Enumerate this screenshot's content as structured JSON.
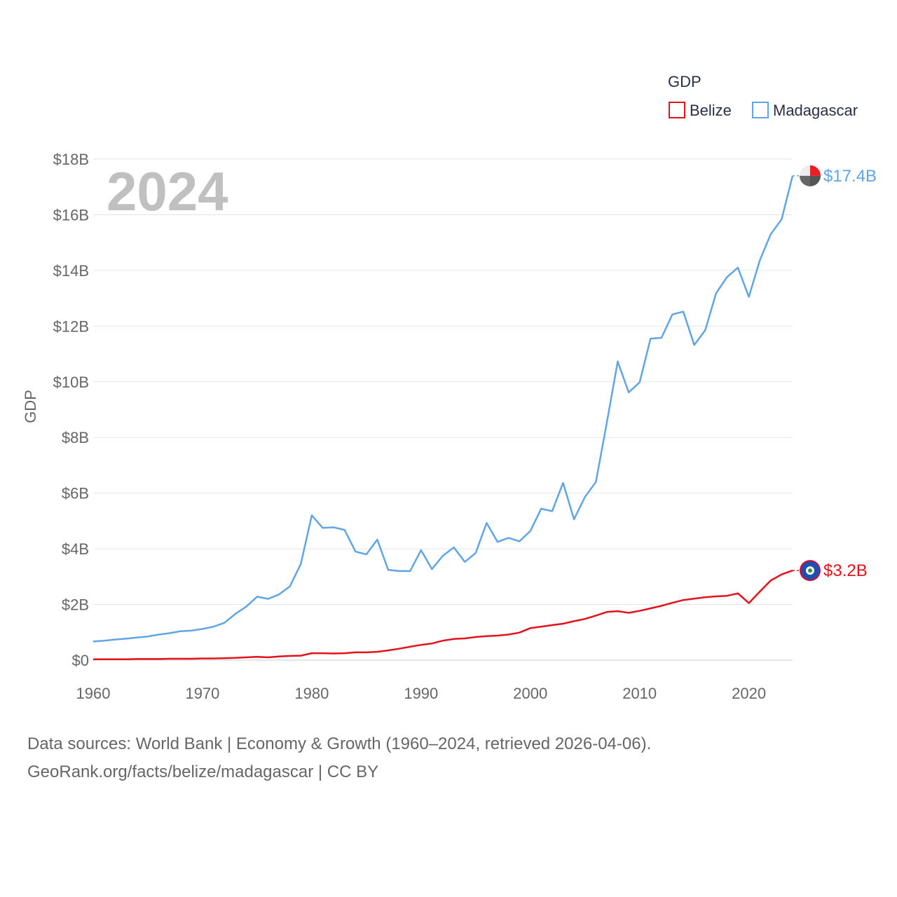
{
  "chart_data": {
    "type": "line",
    "ylabel": "GDP",
    "xlabel": "",
    "x_ticks": [
      "1960",
      "1970",
      "1980",
      "1990",
      "2000",
      "2010",
      "2020"
    ],
    "y_ticks": [
      "$0",
      "$2B",
      "$4B",
      "$6B",
      "$8B",
      "$10B",
      "$12B",
      "$14B",
      "$16B",
      "$18B"
    ],
    "xlim": [
      1960,
      2024
    ],
    "ylim": [
      0,
      18
    ],
    "y_unit": "billion USD",
    "year_label": "2024",
    "legend_title": "GDP",
    "legend_position": "top-right",
    "x": [
      1960,
      1961,
      1962,
      1963,
      1964,
      1965,
      1966,
      1967,
      1968,
      1969,
      1970,
      1971,
      1972,
      1973,
      1974,
      1975,
      1976,
      1977,
      1978,
      1979,
      1980,
      1981,
      1982,
      1983,
      1984,
      1985,
      1986,
      1987,
      1988,
      1989,
      1990,
      1991,
      1992,
      1993,
      1994,
      1995,
      1996,
      1997,
      1998,
      1999,
      2000,
      2001,
      2002,
      2003,
      2004,
      2005,
      2006,
      2007,
      2008,
      2009,
      2010,
      2011,
      2012,
      2013,
      2014,
      2015,
      2016,
      2017,
      2018,
      2019,
      2020,
      2021,
      2022,
      2023,
      2024
    ],
    "series": [
      {
        "name": "Belize",
        "color": "#e3121b",
        "end_label": "$3.2B",
        "values": [
          0.03,
          0.03,
          0.03,
          0.03,
          0.04,
          0.04,
          0.04,
          0.05,
          0.05,
          0.05,
          0.06,
          0.06,
          0.07,
          0.08,
          0.1,
          0.12,
          0.1,
          0.13,
          0.15,
          0.16,
          0.25,
          0.25,
          0.24,
          0.25,
          0.28,
          0.28,
          0.3,
          0.35,
          0.41,
          0.48,
          0.55,
          0.6,
          0.7,
          0.76,
          0.78,
          0.83,
          0.86,
          0.88,
          0.92,
          0.99,
          1.15,
          1.2,
          1.26,
          1.31,
          1.4,
          1.48,
          1.6,
          1.73,
          1.76,
          1.7,
          1.77,
          1.86,
          1.95,
          2.06,
          2.16,
          2.21,
          2.26,
          2.29,
          2.31,
          2.4,
          2.05,
          2.46,
          2.86,
          3.08,
          3.22
        ]
      },
      {
        "name": "Madagascar",
        "color": "#60a5e5",
        "end_label": "$17.4B",
        "values": [
          0.67,
          0.7,
          0.74,
          0.77,
          0.81,
          0.85,
          0.92,
          0.97,
          1.04,
          1.06,
          1.12,
          1.2,
          1.34,
          1.66,
          1.92,
          2.28,
          2.2,
          2.36,
          2.65,
          3.46,
          5.2,
          4.75,
          4.77,
          4.68,
          3.9,
          3.8,
          4.33,
          3.24,
          3.2,
          3.2,
          3.95,
          3.27,
          3.75,
          4.05,
          3.53,
          3.85,
          4.93,
          4.25,
          4.39,
          4.27,
          4.64,
          5.44,
          5.35,
          6.37,
          5.06,
          5.86,
          6.4,
          8.53,
          10.73,
          9.62,
          9.98,
          11.55,
          11.58,
          12.42,
          12.52,
          11.32,
          11.85,
          13.18,
          13.76,
          14.1,
          13.05,
          14.36,
          15.3,
          15.84,
          17.4
        ]
      }
    ]
  },
  "legend": {
    "title": "GDP",
    "items": [
      {
        "label": "Belize",
        "color": "#e3121b"
      },
      {
        "label": "Madagascar",
        "color": "#60a5e5"
      }
    ]
  },
  "footer": {
    "line1": "Data sources: World Bank | Economy & Growth (1960–2024, retrieved 2026-04-06).",
    "line2": "GeoRank.org/facts/belize/madagascar | CC BY"
  }
}
